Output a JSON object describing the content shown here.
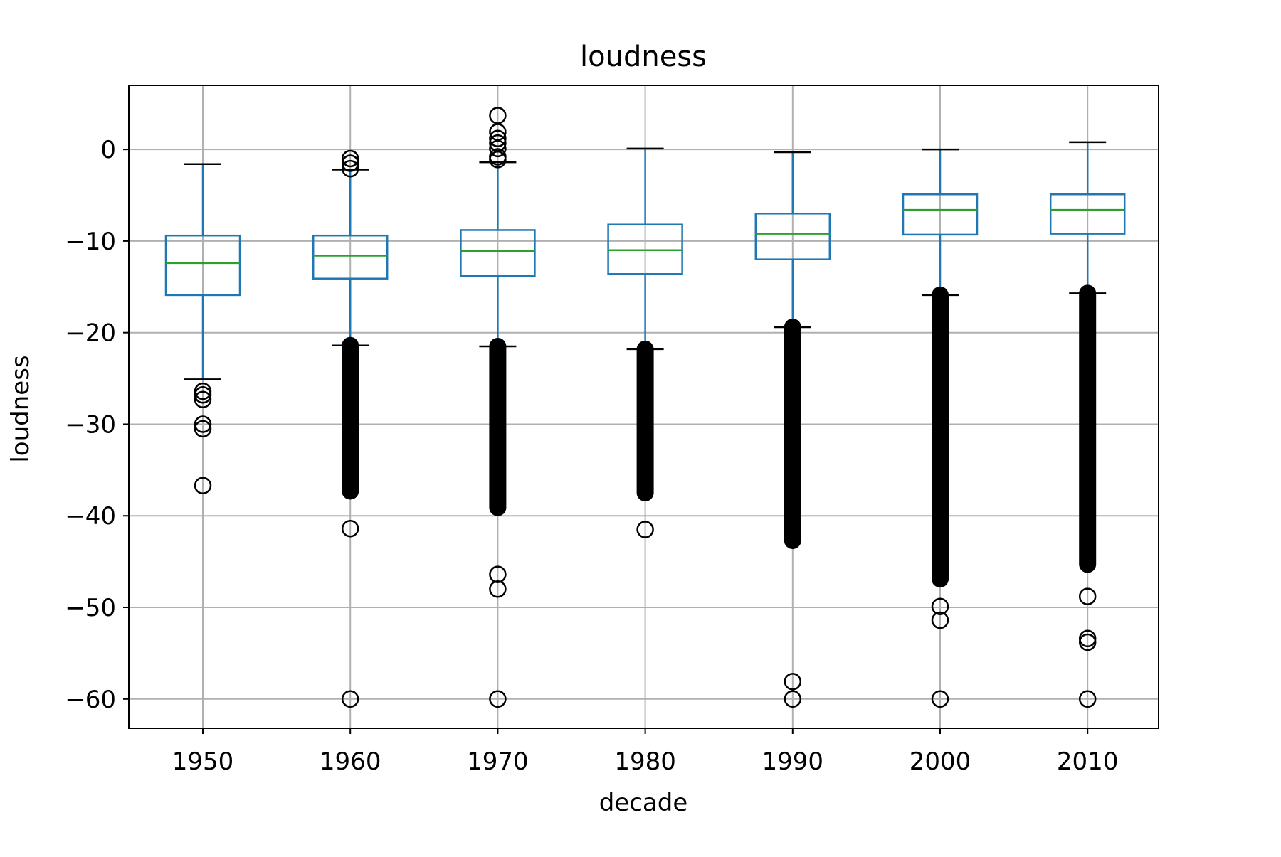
{
  "chart_data": {
    "type": "box",
    "title": "loudness",
    "xlabel": "decade",
    "ylabel": "loudness",
    "ylim": [
      -63.2,
      7
    ],
    "yticks": [
      0,
      -10,
      -20,
      -30,
      -40,
      -50,
      -60
    ],
    "ytick_labels": [
      "0",
      "−10",
      "−20",
      "−30",
      "−40",
      "−50",
      "−60"
    ],
    "grid": true,
    "categories": [
      "1950",
      "1960",
      "1970",
      "1980",
      "1990",
      "2000",
      "2010"
    ],
    "boxes": [
      {
        "category": "1950",
        "whisker_low": -25.1,
        "q1": -15.9,
        "median": -12.4,
        "q3": -9.4,
        "whisker_high": -1.6,
        "outliers": [
          -26.4,
          -26.8,
          -27.3,
          -30.0,
          -30.5,
          -36.7
        ]
      },
      {
        "category": "1960",
        "whisker_low": -21.4,
        "q1": -14.1,
        "median": -11.6,
        "q3": -9.4,
        "whisker_high": -2.2,
        "outliers": [
          -1.0,
          -1.5,
          -2.1,
          -41.4,
          -60.0
        ],
        "outlier_band": [
          -21.4,
          -37.3
        ]
      },
      {
        "category": "1970",
        "whisker_low": -21.5,
        "q1": -13.8,
        "median": -11.1,
        "q3": -8.8,
        "whisker_high": -1.4,
        "outliers": [
          3.7,
          1.9,
          1.2,
          0.7,
          0.1,
          -0.8,
          -1.1,
          -46.4,
          -48.0,
          -60.0
        ],
        "outlier_band": [
          -21.5,
          -39.1
        ]
      },
      {
        "category": "1980",
        "whisker_low": -21.8,
        "q1": -13.6,
        "median": -11.0,
        "q3": -8.2,
        "whisker_high": 0.1,
        "outliers": [
          -41.5
        ],
        "outlier_band": [
          -21.8,
          -37.5
        ]
      },
      {
        "category": "1990",
        "whisker_low": -19.4,
        "q1": -12.0,
        "median": -9.2,
        "q3": -7.0,
        "whisker_high": -0.3,
        "outliers": [
          -58.1,
          -60.0
        ],
        "outlier_band": [
          -19.4,
          -42.7
        ]
      },
      {
        "category": "2000",
        "whisker_low": -15.9,
        "q1": -9.3,
        "median": -6.6,
        "q3": -4.9,
        "whisker_high": 0.0,
        "outliers": [
          -49.9,
          -51.4,
          -60.0
        ],
        "outlier_band": [
          -15.9,
          -46.9
        ]
      },
      {
        "category": "2010",
        "whisker_low": -15.7,
        "q1": -9.2,
        "median": -6.6,
        "q3": -4.9,
        "whisker_high": 0.8,
        "outliers": [
          -48.8,
          -53.4,
          -53.8,
          -60.0
        ],
        "outlier_band": [
          -15.7,
          -45.3
        ]
      }
    ],
    "colors": {
      "box": "#1f77b4",
      "median": "#2ca02c",
      "whisker_cap": "#000000",
      "outlier": "#000000",
      "grid": "#b0b0b0",
      "frame": "#000000"
    }
  }
}
